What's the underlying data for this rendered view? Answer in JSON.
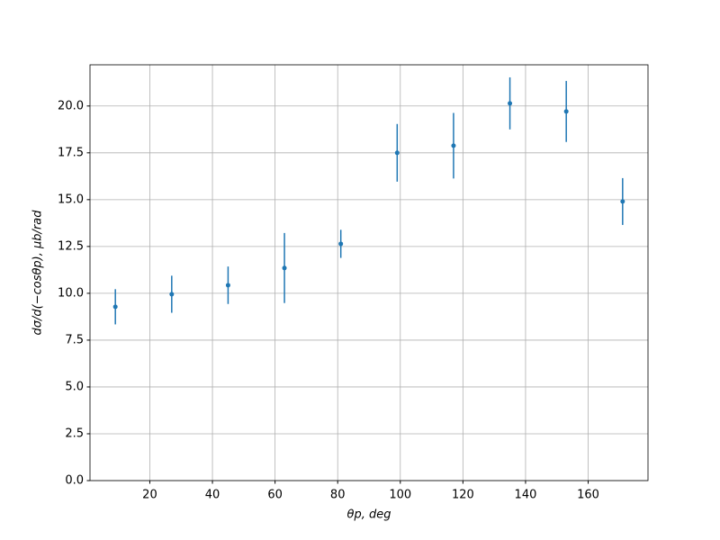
{
  "chart_data": {
    "type": "errorbar",
    "x_label": "θp, deg",
    "y_label": "dσ/d(−cosθp), μb/rad",
    "x": [
      9,
      27,
      45,
      63,
      81,
      99,
      117,
      135,
      153,
      171
    ],
    "values": [
      9.28,
      9.95,
      10.43,
      11.35,
      12.64,
      17.5,
      17.88,
      20.14,
      19.71,
      14.9
    ],
    "errors": [
      0.94,
      0.99,
      1.0,
      1.87,
      0.75,
      1.54,
      1.75,
      1.39,
      1.63,
      1.25
    ],
    "color": "#1f77b4",
    "xlim": [
      0.9,
      179.1
    ],
    "ylim": [
      0,
      22.2
    ],
    "xticks": [
      20,
      40,
      60,
      80,
      100,
      120,
      140,
      160
    ],
    "yticks": [
      {
        "value": 0,
        "label": "0.0"
      },
      2.5,
      {
        "value": 5,
        "label": "5.0"
      },
      7.5,
      {
        "value": 10,
        "label": "10.0"
      },
      12.5,
      {
        "value": 15,
        "label": "15.0"
      },
      17.5,
      {
        "value": 20,
        "label": "20.0"
      }
    ],
    "grid": true
  }
}
